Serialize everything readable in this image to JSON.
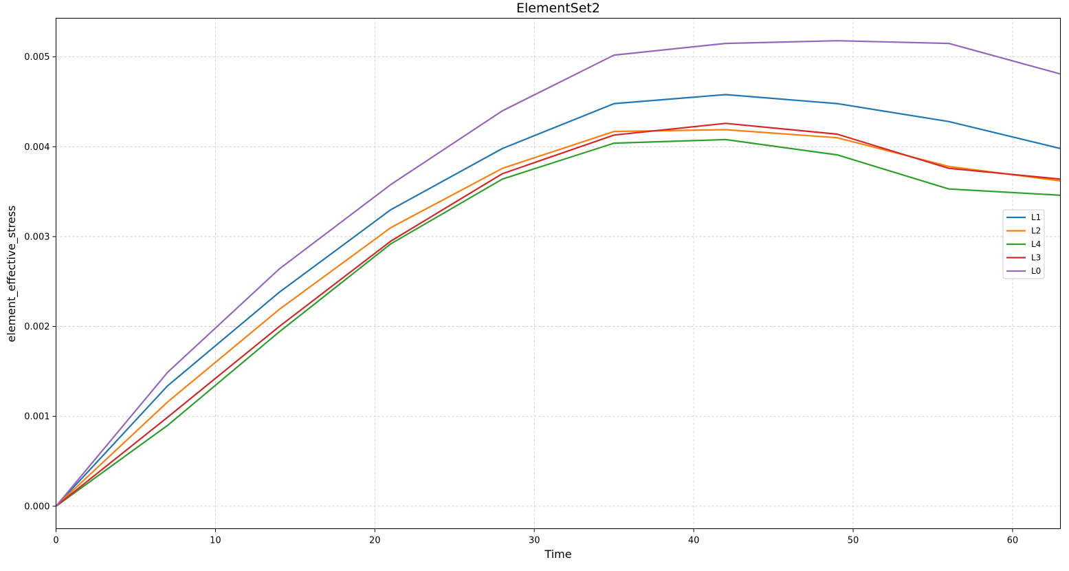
{
  "chart_data": {
    "type": "line",
    "title": "ElementSet2",
    "xlabel": "Time",
    "ylabel": "element_effective_stress",
    "xlim": [
      0,
      63
    ],
    "ylim": [
      -0.00025,
      0.00543
    ],
    "xticks": [
      0,
      10,
      20,
      30,
      40,
      50,
      60
    ],
    "xtick_labels": [
      "0",
      "10",
      "20",
      "30",
      "40",
      "50",
      "60"
    ],
    "yticks": [
      0,
      0.001,
      0.002,
      0.003,
      0.004,
      0.005
    ],
    "ytick_labels": [
      "0.000",
      "0.001",
      "0.002",
      "0.003",
      "0.004",
      "0.005"
    ],
    "grid": true,
    "legend_position": "right",
    "x": [
      0,
      7,
      14,
      21,
      28,
      35,
      42,
      49,
      56,
      63
    ],
    "series": [
      {
        "name": "L1",
        "color": "#1f77b4",
        "values": [
          0,
          0.00134,
          0.00238,
          0.0033,
          0.00398,
          0.00448,
          0.00458,
          0.00448,
          0.00428,
          0.00398
        ]
      },
      {
        "name": "L2",
        "color": "#ff7f0e",
        "values": [
          0,
          0.00116,
          0.00219,
          0.0031,
          0.00376,
          0.00417,
          0.00419,
          0.0041,
          0.00378,
          0.00362
        ]
      },
      {
        "name": "L4",
        "color": "#2ca02c",
        "values": [
          0,
          0.0009,
          0.00194,
          0.00292,
          0.00364,
          0.00404,
          0.00408,
          0.00391,
          0.00353,
          0.00346
        ]
      },
      {
        "name": "L3",
        "color": "#d62728",
        "values": [
          0,
          0.00099,
          0.002,
          0.00295,
          0.0037,
          0.00413,
          0.00426,
          0.00414,
          0.00376,
          0.00364
        ]
      },
      {
        "name": "L0",
        "color": "#9467bd",
        "values": [
          0,
          0.00149,
          0.00264,
          0.00358,
          0.0044,
          0.00502,
          0.00515,
          0.00518,
          0.00515,
          0.00481
        ]
      }
    ]
  }
}
